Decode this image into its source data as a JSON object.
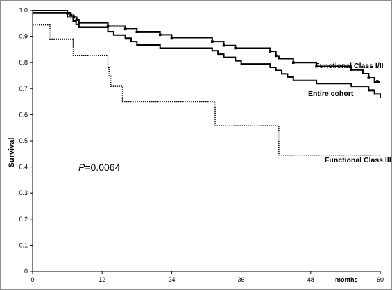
{
  "chart_data": {
    "type": "line",
    "title": "",
    "xlabel": "months",
    "ylabel": "Survival",
    "xlim": [
      0,
      60
    ],
    "ylim": [
      0,
      1.0
    ],
    "x_ticks": [
      0,
      12,
      24,
      36,
      48,
      60
    ],
    "y_ticks": [
      0,
      0.1,
      0.2,
      0.3,
      0.4,
      0.5,
      0.6,
      0.7,
      0.8,
      0.9,
      1.0
    ],
    "y_tick_labels": [
      "0",
      "0.1",
      "0.2",
      "0.3",
      "0.4",
      "0.5",
      "0.6",
      "0.7",
      "0.8",
      "0.9",
      "1.0"
    ],
    "grid": false,
    "annotation": {
      "p_symbol": "P",
      "p_value_text": "=0.0064"
    },
    "series": [
      {
        "name": "Functional Class I/II",
        "line_style": "solid",
        "color": "#000000",
        "steps": [
          [
            0,
            1.0
          ],
          [
            6,
            0.99
          ],
          [
            6.6,
            0.983
          ],
          [
            7.1,
            0.975
          ],
          [
            7.6,
            0.965
          ],
          [
            8,
            0.953
          ],
          [
            13,
            0.94
          ],
          [
            16,
            0.93
          ],
          [
            18,
            0.918
          ],
          [
            22,
            0.906
          ],
          [
            24,
            0.895
          ],
          [
            31,
            0.88
          ],
          [
            33,
            0.865
          ],
          [
            35,
            0.855
          ],
          [
            41,
            0.843
          ],
          [
            42,
            0.826
          ],
          [
            42.5,
            0.815
          ],
          [
            45,
            0.8
          ],
          [
            49,
            0.786
          ],
          [
            55,
            0.772
          ],
          [
            57,
            0.758
          ],
          [
            58,
            0.742
          ],
          [
            59,
            0.726
          ]
        ],
        "x_end": 60,
        "censor_x": [
          6,
          6.6,
          7.1,
          7.6,
          8,
          13,
          16,
          18,
          22,
          24,
          31,
          33,
          35,
          41,
          42,
          45,
          49,
          55,
          58,
          59.5
        ]
      },
      {
        "name": "Entire cohort",
        "line_style": "solid",
        "color": "#000000",
        "steps": [
          [
            0,
            0.99
          ],
          [
            6,
            0.975
          ],
          [
            7,
            0.96
          ],
          [
            7.5,
            0.947
          ],
          [
            8,
            0.935
          ],
          [
            13,
            0.92
          ],
          [
            14,
            0.905
          ],
          [
            16,
            0.893
          ],
          [
            17,
            0.88
          ],
          [
            18,
            0.867
          ],
          [
            22,
            0.855
          ],
          [
            31,
            0.845
          ],
          [
            32,
            0.832
          ],
          [
            33,
            0.82
          ],
          [
            35,
            0.807
          ],
          [
            36,
            0.795
          ],
          [
            41,
            0.782
          ],
          [
            42,
            0.77
          ],
          [
            43,
            0.757
          ],
          [
            44,
            0.745
          ],
          [
            45,
            0.732
          ],
          [
            49,
            0.72
          ],
          [
            55,
            0.707
          ],
          [
            58,
            0.693
          ],
          [
            59,
            0.68
          ],
          [
            60,
            0.665
          ]
        ],
        "x_end": 60
      },
      {
        "name": "Functional Class III",
        "line_style": "dotted",
        "color": "#000000",
        "steps": [
          [
            0,
            0.945
          ],
          [
            3,
            0.89
          ],
          [
            7,
            0.828
          ],
          [
            13,
            0.78
          ],
          [
            13.2,
            0.75
          ],
          [
            13.5,
            0.71
          ],
          [
            15.5,
            0.65
          ],
          [
            31.5,
            0.558
          ],
          [
            42.5,
            0.445
          ]
        ],
        "x_end": 60
      }
    ]
  }
}
